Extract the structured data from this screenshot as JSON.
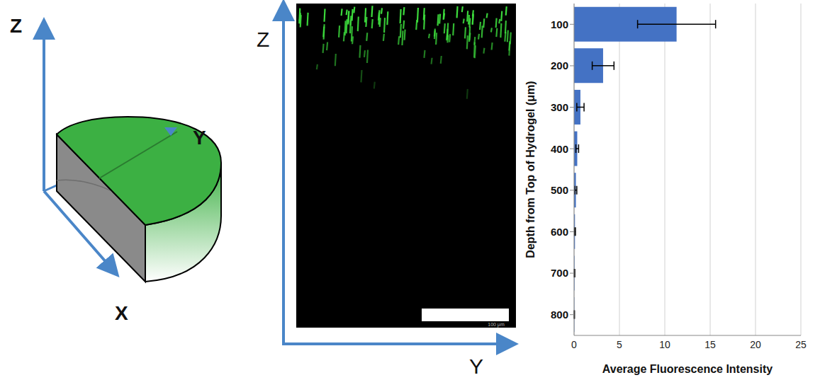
{
  "chart_data": {
    "type": "bar",
    "orientation": "horizontal",
    "categories": [
      "100",
      "200",
      "300",
      "400",
      "500",
      "600",
      "700",
      "800"
    ],
    "values": [
      11.3,
      3.2,
      0.7,
      0.35,
      0.2,
      0.1,
      0.05,
      0.03
    ],
    "errors": [
      4.3,
      1.2,
      0.4,
      0.15,
      0.1,
      0.05,
      0.03,
      0.02
    ],
    "color": "#4472c4",
    "xlim": [
      0,
      25
    ],
    "xticks": [
      0,
      5,
      10,
      15,
      20,
      25
    ],
    "grid": true,
    "x_label": "Average Fluorescence Intensity",
    "y_label": "Depth from Top of Hydrogel (μm)"
  },
  "diagram": {
    "axes": {
      "z": "Z",
      "y": "Y",
      "x": "X"
    }
  },
  "micrograph": {
    "axes": {
      "z": "Z",
      "y": "Y"
    },
    "scale_bar": "100 μm"
  }
}
